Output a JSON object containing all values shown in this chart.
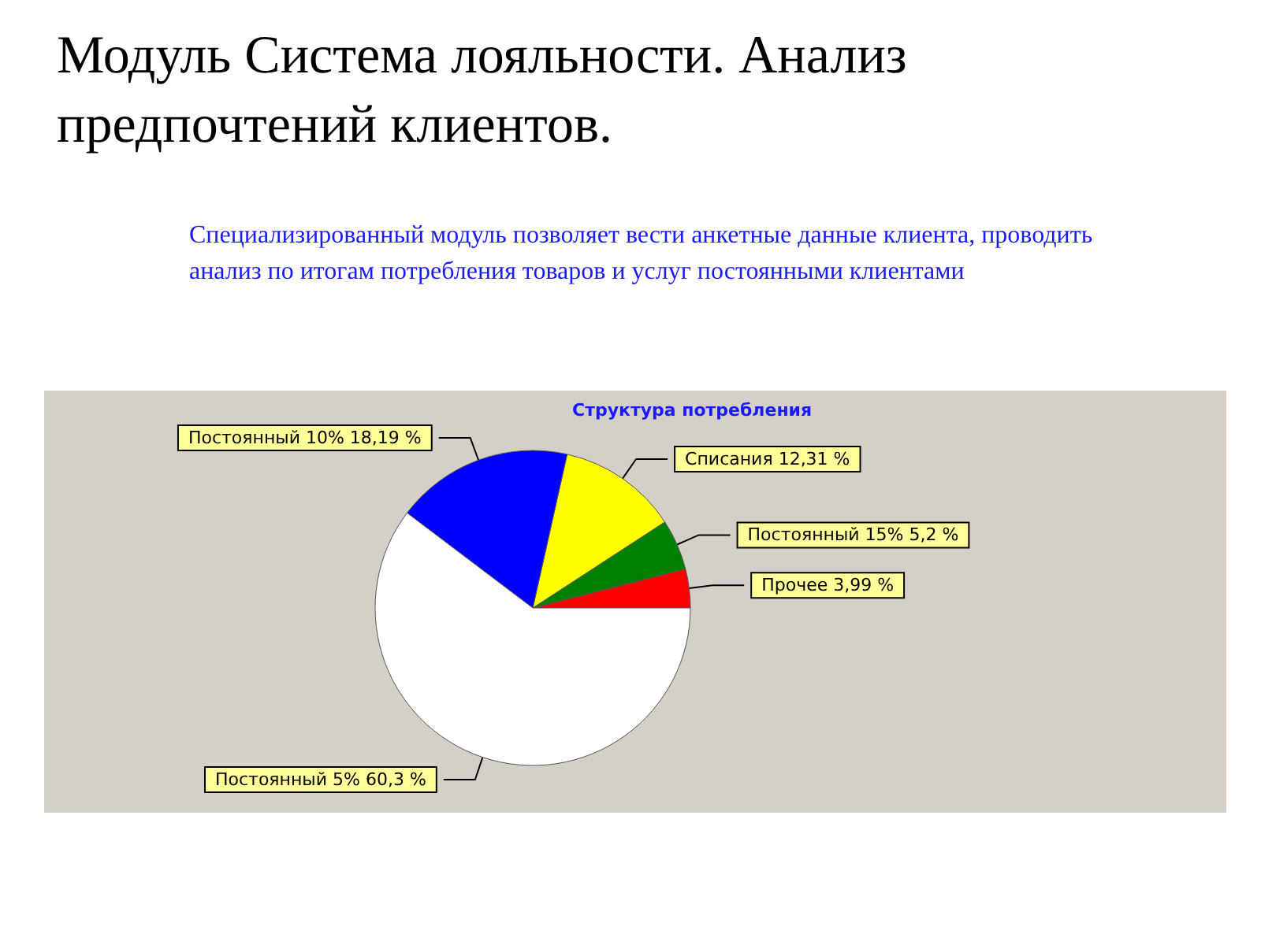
{
  "chart_data": {
    "type": "pie",
    "title": "Модуль Система лояльности. Анализ предпочтений клиентов.",
    "subtitle": "Специализированный  модуль  позволяет вести анкетные данные клиента, проводить анализ по итогам потребления товаров и услуг постоянными клиентами",
    "annotations": [
      "Структура потребления"
    ],
    "categories": [
      "Прочее",
      "Постоянный 15%",
      "Списания",
      "Постоянный 10%",
      "Постоянный 5%"
    ],
    "values": [
      3.99,
      5.2,
      12.31,
      18.19,
      60.3
    ],
    "value_labels": [
      "3,99 %",
      "5,2 %",
      "12,31 %",
      "18,19 %",
      "60,3 %"
    ],
    "colors": [
      "#ff0000",
      "#008000",
      "#ffff00",
      "#0000ff",
      "#ffffff"
    ]
  }
}
